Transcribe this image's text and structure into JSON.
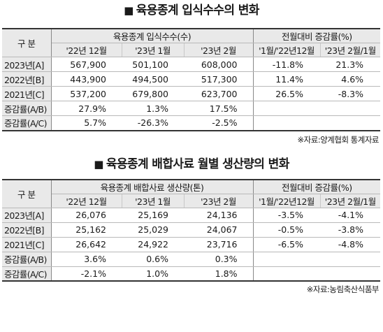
{
  "table1": {
    "title": "육용종계 입식수수의 변화",
    "corner": "구 분",
    "group_left": "육용종계 입식수수(수)",
    "group_right": "전월대비 증감률(%)",
    "col_heads": [
      "'22년 12월",
      "'23년 1월",
      "'23년 2월",
      "'1월/'22년12월",
      "'23년 2월/1월"
    ],
    "rows": [
      {
        "label": "2023년[A]",
        "cells": [
          "567,900",
          "501,100",
          "608,000",
          "-11.8%",
          "21.3%"
        ]
      },
      {
        "label": "2022년[B]",
        "cells": [
          "443,900",
          "494,500",
          "517,300",
          "11.4%",
          "4.6%"
        ]
      },
      {
        "label": "2021년[C]",
        "cells": [
          "537,200",
          "679,800",
          "623,700",
          "26.5%",
          "-8.3%"
        ]
      },
      {
        "label": "증감률(A/B)",
        "cells": [
          "27.9%",
          "1.3%",
          "17.5%",
          "",
          ""
        ]
      },
      {
        "label": "증감률(A/C)",
        "cells": [
          "5.7%",
          "-26.3%",
          "-2.5%",
          "",
          ""
        ]
      }
    ],
    "source": "※자료:양계협회 통계자료"
  },
  "table2": {
    "title": "육용종계 배합사료 월별 생산량의 변화",
    "corner": "구 분",
    "group_left": "육용종계 배합사료 생산량(톤)",
    "group_right": "전월대비 증감률(%)",
    "col_heads": [
      "'22년 12월",
      "'23년 1월",
      "'23년 2월",
      "'1월/'22년12월",
      "'23년 2월/1월"
    ],
    "rows": [
      {
        "label": "2023년[A]",
        "cells": [
          "26,076",
          "25,169",
          "24,136",
          "-3.5%",
          "-4.1%"
        ]
      },
      {
        "label": "2022년[B]",
        "cells": [
          "25,162",
          "25,029",
          "24,067",
          "-0.5%",
          "-3.8%"
        ]
      },
      {
        "label": "2021년[C]",
        "cells": [
          "26,642",
          "24,922",
          "23,716",
          "-6.5%",
          "-4.8%"
        ]
      },
      {
        "label": "증감률(A/B)",
        "cells": [
          "3.6%",
          "0.6%",
          "0.3%",
          "",
          ""
        ]
      },
      {
        "label": "증감률(A/C)",
        "cells": [
          "-2.1%",
          "1.0%",
          "1.8%",
          "",
          ""
        ]
      }
    ],
    "source": "※자료:농림축산식품부"
  }
}
